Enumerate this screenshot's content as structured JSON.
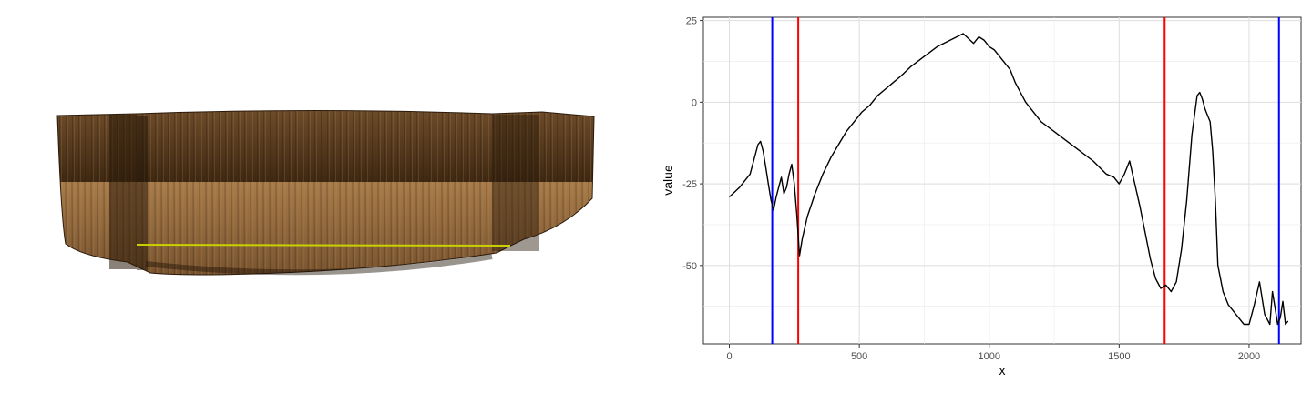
{
  "scan_image": {
    "subject": "3D point-cloud scan of a curved wooden surface",
    "colors": {
      "wood_light": "#a87c4a",
      "wood_mid": "#7a5530",
      "wood_dark": "#3e2812",
      "trace_line": "#c8d000"
    }
  },
  "chart_data": {
    "type": "line",
    "xlabel": "x",
    "ylabel": "value",
    "xlim": [
      -100,
      2200
    ],
    "ylim": [
      -74,
      26
    ],
    "xticks": [
      0,
      500,
      1000,
      1500,
      2000
    ],
    "yticks": [
      25,
      0,
      -25,
      -50
    ],
    "grid": true,
    "legend": "none",
    "line_color": "#000000",
    "series": [
      {
        "x": [
          0,
          40,
          80,
          110,
          120,
          130,
          140,
          150,
          160,
          170,
          180,
          190,
          200,
          210,
          220,
          230,
          240,
          250,
          260,
          270,
          280,
          300,
          330,
          360,
          390,
          420,
          450,
          480,
          510,
          540,
          570,
          600,
          630,
          660,
          700,
          750,
          800,
          850,
          900,
          940,
          960,
          980,
          1000,
          1020,
          1040,
          1060,
          1080,
          1100,
          1120,
          1140,
          1170,
          1200,
          1250,
          1300,
          1350,
          1400,
          1450,
          1480,
          1500,
          1520,
          1540,
          1560,
          1580,
          1600,
          1620,
          1640,
          1660,
          1680,
          1700,
          1720,
          1740,
          1760,
          1780,
          1800,
          1810,
          1820,
          1830,
          1840,
          1850,
          1860,
          1870,
          1880,
          1900,
          1920,
          1940,
          1960,
          1980,
          2000,
          2020,
          2040,
          2060,
          2080,
          2090,
          2100,
          2110,
          2120,
          2130,
          2140,
          2150
        ],
        "values": [
          -29,
          -26,
          -22,
          -13,
          -12,
          -15,
          -20,
          -25,
          -30,
          -33,
          -29,
          -26,
          -23,
          -28,
          -26,
          -22,
          -19,
          -25,
          -35,
          -47,
          -42,
          -35,
          -28,
          -22,
          -17,
          -13,
          -9,
          -6,
          -3,
          -1,
          2,
          4,
          6,
          8,
          11,
          14,
          17,
          19,
          21,
          18,
          20,
          19,
          17,
          16,
          14,
          12,
          10,
          6,
          3,
          0,
          -3,
          -6,
          -9,
          -12,
          -15,
          -18,
          -22,
          -23,
          -25,
          -22,
          -18,
          -25,
          -32,
          -40,
          -48,
          -54,
          -57,
          -56,
          -58,
          -55,
          -45,
          -30,
          -10,
          2,
          3,
          1,
          -2,
          -4,
          -6,
          -15,
          -30,
          -50,
          -58,
          -62,
          -64,
          -66,
          -68,
          -68,
          -62,
          -55,
          -65,
          -68,
          -58,
          -63,
          -68,
          -66,
          -61,
          -68,
          -67
        ]
      }
    ],
    "vlines": [
      {
        "x": 165,
        "color": "#0000ff"
      },
      {
        "x": 2115,
        "color": "#0000ff"
      },
      {
        "x": 265,
        "color": "#ff0000"
      },
      {
        "x": 1675,
        "color": "#ff0000"
      }
    ]
  }
}
